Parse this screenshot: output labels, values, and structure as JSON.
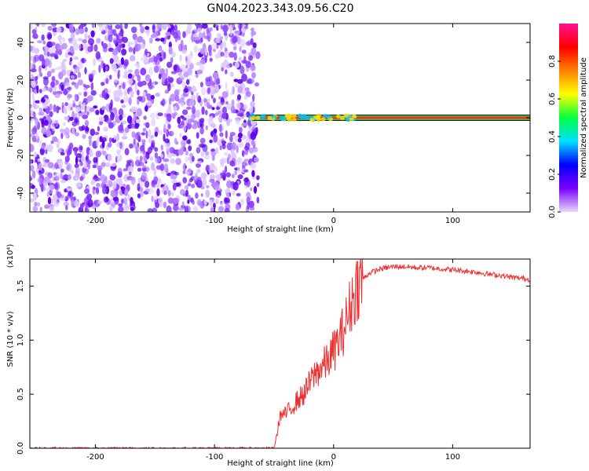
{
  "title": "GN04.2023.343.09.56.C20",
  "chart_data": [
    {
      "type": "heatmap",
      "xlabel": "Height of straight line (km)",
      "ylabel": "Frequency (Hz)",
      "xlim": [
        -255,
        165
      ],
      "ylim": [
        -50,
        50
      ],
      "xticks": [
        -200,
        -100,
        0,
        100
      ],
      "yticks": [
        -40,
        -20,
        0,
        20,
        40
      ],
      "colorbar": {
        "label": "Normalized spectral amplitude",
        "range": [
          0,
          1
        ],
        "ticks": [
          "0.0",
          "0.2",
          "0.4",
          "0.6",
          "0.8"
        ],
        "tick_values": [
          0,
          0.2,
          0.4,
          0.6,
          0.8
        ],
        "colors": [
          "#e8d8f8",
          "#7a00ff",
          "#0000ff",
          "#00e0ff",
          "#00ff40",
          "#ffff00",
          "#ff8000",
          "#ff0000",
          "#ff1090"
        ]
      },
      "noise_region_x": [
        -255,
        -70
      ],
      "signal_line": {
        "x": [
          -70,
          165
        ],
        "frequency": 0
      },
      "colors": {
        "noise": "#7a1cff",
        "line_core": "#ff2a2a",
        "line_edge": "#1fd12b"
      }
    },
    {
      "type": "line",
      "xlabel": "Height of straight line (km)",
      "ylabel": "SNR (10 * v/v)",
      "ylabel_scale": "(x10⁴)",
      "xlim": [
        -255,
        165
      ],
      "ylim": [
        0,
        1.75
      ],
      "xticks": [
        -200,
        -100,
        0,
        100
      ],
      "yticks": [
        "0.0",
        "0.5",
        "1.0",
        "1.5"
      ],
      "ytick_values": [
        0,
        0.5,
        1.0,
        1.5
      ],
      "color": "#f03030",
      "envelope": {
        "x": [
          -255,
          -50,
          -48,
          -45,
          -40,
          -35,
          -30,
          -25,
          -20,
          -15,
          -10,
          -5,
          0,
          5,
          10,
          15,
          20,
          30,
          40,
          50,
          60,
          70,
          80,
          90,
          100,
          110,
          120,
          130,
          140,
          150,
          160,
          165
        ],
        "y": [
          0.0,
          0.0,
          0.1,
          0.3,
          0.32,
          0.38,
          0.45,
          0.5,
          0.6,
          0.7,
          0.75,
          0.8,
          0.9,
          1.0,
          1.15,
          1.35,
          1.52,
          1.62,
          1.66,
          1.68,
          1.68,
          1.67,
          1.67,
          1.66,
          1.65,
          1.64,
          1.63,
          1.61,
          1.6,
          1.58,
          1.57,
          1.56
        ]
      }
    }
  ]
}
